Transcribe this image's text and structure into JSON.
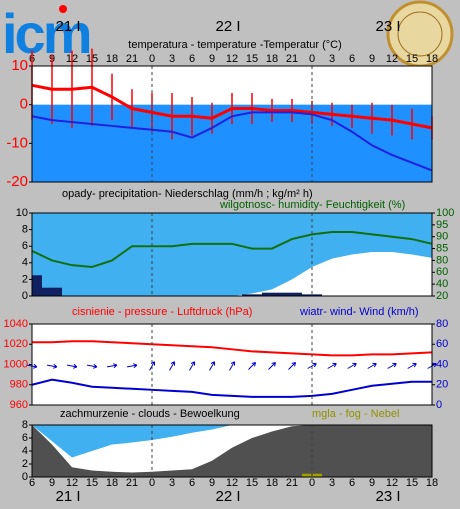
{
  "logo": "icm",
  "chart_data": [
    {
      "type": "line",
      "title": "temperatura - temperature -Temperatur (°C)",
      "categories": [
        "6",
        "9",
        "12",
        "15",
        "18",
        "21",
        "0",
        "3",
        "6",
        "9",
        "12",
        "15",
        "18",
        "21",
        "0",
        "3",
        "6",
        "9",
        "12",
        "15",
        "18"
      ],
      "days": [
        "21 I",
        "22 I",
        "23 I"
      ],
      "ylim": [
        -20,
        10
      ],
      "yticks": [
        10,
        0,
        -10,
        -20
      ],
      "tick_color": "#ff0000",
      "series": [
        {
          "kind": "line",
          "color": "#ff0000",
          "width": 3,
          "values": [
            5,
            4,
            4,
            4.5,
            2,
            -1,
            -2,
            -3,
            -3,
            -3.5,
            -1,
            -1,
            -1.5,
            -1.5,
            -2,
            -2.5,
            -3,
            -3.5,
            -4,
            -5,
            -6
          ],
          "errors": [
            9,
            9,
            10,
            10,
            6,
            5,
            5,
            6,
            5,
            4,
            4,
            4,
            3,
            3,
            3,
            3,
            3,
            4,
            4,
            4,
            3
          ]
        },
        {
          "kind": "line",
          "color": "#2020e0",
          "width": 2,
          "values": [
            -3,
            -4,
            -4.5,
            -5,
            -5.5,
            -6,
            -6.5,
            -7,
            -8.5,
            -6,
            -3,
            -2,
            -2,
            -2,
            -2.5,
            -4,
            -7,
            -10.5,
            -13,
            -15,
            -17
          ]
        }
      ]
    },
    {
      "type": "bar",
      "title": "opady- precipitation- Niederschlag (mm/h ; kg/m² h)",
      "y2title": "wilgotnosc- humidity- Feuchtigkeit (%)",
      "y2color": "#006000",
      "ylim": [
        0,
        10
      ],
      "yticks": [
        0,
        2,
        4,
        6,
        8,
        10
      ],
      "y2lim": [
        20,
        100
      ],
      "y2ticks": [
        20,
        40,
        60,
        80,
        85,
        90,
        95,
        100
      ],
      "background": "#40b0f0",
      "series": [
        {
          "kind": "area",
          "color": "#ffffff",
          "values": [
            0,
            0,
            0,
            0,
            0,
            0,
            0,
            0,
            0,
            0,
            0,
            0.3,
            0.8,
            2,
            3.5,
            4.5,
            5,
            5.3,
            5.3,
            5,
            4.6
          ]
        },
        {
          "kind": "bar",
          "color": "#102060",
          "values": [
            2.5,
            1,
            0,
            0,
            0,
            0,
            0,
            0,
            0,
            0,
            0,
            0.2,
            0.4,
            0.4,
            0.2,
            0,
            0,
            0,
            0,
            0,
            0
          ]
        },
        {
          "kind": "line",
          "color": "#107010",
          "width": 2,
          "axis": "y2",
          "values": [
            84,
            80,
            72,
            69,
            80,
            86,
            86,
            86,
            87,
            87,
            87,
            85,
            85,
            89,
            91,
            92,
            92,
            91,
            90,
            89,
            87
          ]
        }
      ]
    },
    {
      "type": "line",
      "title": "cisnienie - pressure - Luftdruck (hPa)",
      "title_color": "#ff0000",
      "y2title": "wiatr- wind- Wind (km/h)",
      "y2color": "#0000d0",
      "ylim": [
        960,
        1040
      ],
      "yticks": [
        960,
        980,
        1000,
        1020,
        1040
      ],
      "tick_color": "#ff0000",
      "y2lim": [
        0,
        80
      ],
      "y2ticks": [
        0,
        20,
        40,
        60,
        80
      ],
      "series": [
        {
          "kind": "line",
          "color": "#ff0000",
          "width": 2,
          "values": [
            1022,
            1022,
            1023,
            1023,
            1022,
            1021,
            1020,
            1019,
            1018,
            1017,
            1015,
            1013,
            1012,
            1011,
            1010,
            1009,
            1009,
            1010,
            1010,
            1011,
            1012
          ]
        },
        {
          "kind": "line",
          "color": "#0000d0",
          "width": 2,
          "axis": "y2",
          "values": [
            20,
            25,
            22,
            18,
            17,
            16,
            15,
            14,
            13,
            10,
            9,
            8,
            8,
            8,
            9,
            11,
            15,
            19,
            21,
            23,
            23
          ],
          "wind_dir": [
            100,
            100,
            100,
            100,
            80,
            80,
            30,
            30,
            30,
            30,
            30,
            45,
            45,
            45,
            60,
            60,
            60,
            60,
            60,
            60,
            60
          ]
        }
      ]
    },
    {
      "type": "area",
      "title": "zachmurzenie - clouds - Bewoelkung",
      "y2title": "mgla - fog - Nebel",
      "y2color": "#909000",
      "ylim": [
        0,
        8
      ],
      "yticks": [
        0,
        2,
        4,
        6,
        8
      ],
      "background": "#40b0f0",
      "series": [
        {
          "kind": "area",
          "color": "#ffffff",
          "values": [
            8,
            5.5,
            3,
            4,
            5,
            5.3,
            5.7,
            6.2,
            6.8,
            7.3,
            8,
            8,
            8,
            8,
            8,
            8,
            8,
            8,
            8,
            8,
            8
          ]
        },
        {
          "kind": "area",
          "color": "#505050",
          "values": [
            8,
            5,
            1.5,
            1,
            0.8,
            0.7,
            0.8,
            1,
            1.2,
            2.5,
            4.5,
            6,
            7,
            7.8,
            8,
            8,
            8,
            8,
            8,
            8,
            8
          ]
        },
        {
          "kind": "bar",
          "color": "#a0a000",
          "values": [
            0,
            0,
            0,
            0,
            0,
            0,
            0,
            0,
            0,
            0,
            0,
            0,
            0,
            0,
            0.5,
            0,
            0,
            0,
            0,
            0,
            0
          ]
        }
      ]
    }
  ]
}
